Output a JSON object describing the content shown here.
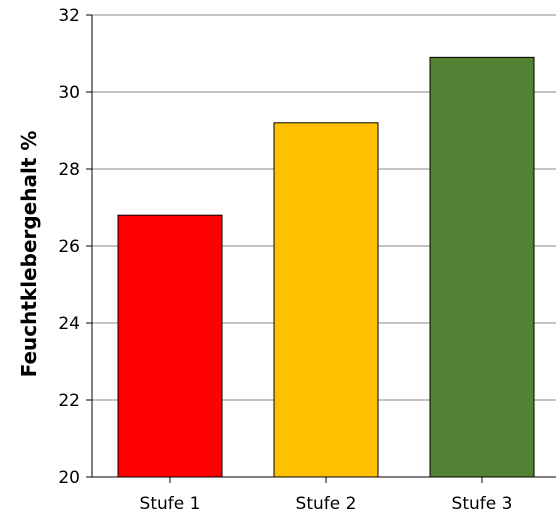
{
  "chart_data": {
    "type": "bar",
    "title": "",
    "xlabel": "",
    "ylabel": "Feuchtklebergehalt %",
    "categories": [
      "Stufe 1",
      "Stufe 2",
      "Stufe 3"
    ],
    "values": [
      26.8,
      29.2,
      30.9
    ],
    "colors": [
      "#ff0000",
      "#ffc000",
      "#548235"
    ],
    "ylim": [
      20,
      32
    ],
    "yticks": [
      20,
      22,
      24,
      26,
      28,
      30,
      32
    ],
    "grid": true,
    "legend": "none"
  }
}
